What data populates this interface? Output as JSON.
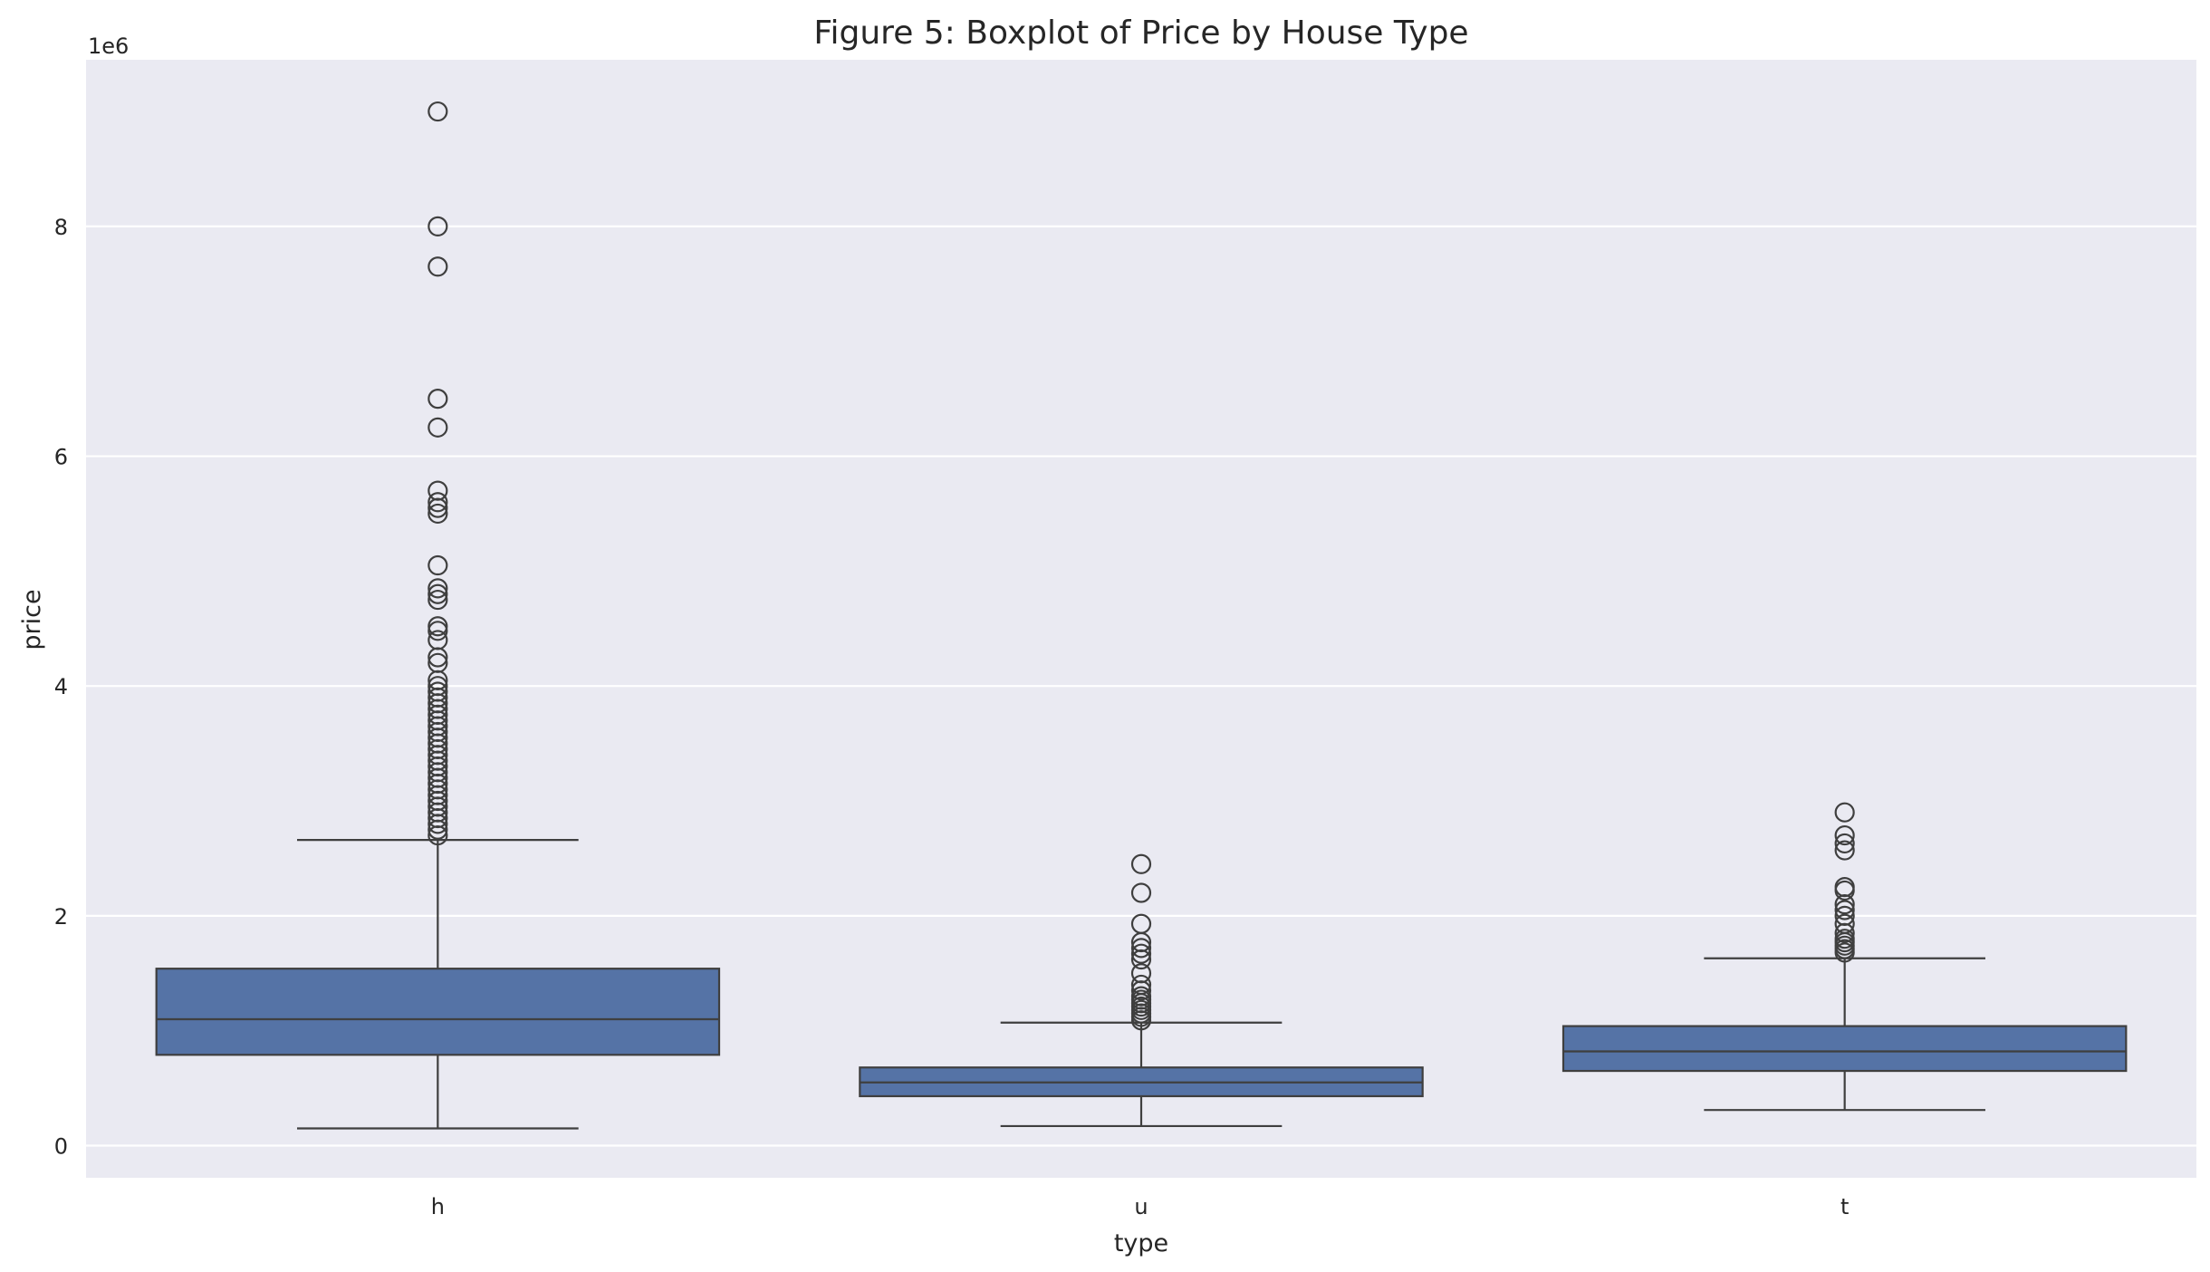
{
  "chart_data": {
    "type": "boxplot",
    "title": "Figure 5: Boxplot of Price by House Type",
    "xlabel": "type",
    "ylabel": "price",
    "y_scale_label": "1e6",
    "y_multiplier": 1000000,
    "ylim": [
      -0.28,
      9.45
    ],
    "y_ticks": [
      0,
      2,
      4,
      6,
      8
    ],
    "y_tick_labels": [
      "0",
      "2",
      "4",
      "6",
      "8"
    ],
    "grid": true,
    "legend": "none",
    "colors": {
      "box": "#5573a6",
      "edge": "#3f3f3f",
      "background": "#eaeaf2"
    },
    "categories": [
      "h",
      "u",
      "t"
    ],
    "series": [
      {
        "category": "h",
        "whisker_low": 0.15,
        "q1": 0.79,
        "median": 1.1,
        "q3": 1.54,
        "whisker_high": 2.66,
        "outliers": [
          9.0,
          8.0,
          7.65,
          6.5,
          6.25,
          5.7,
          5.6,
          5.55,
          5.5,
          5.05,
          4.85,
          4.8,
          4.75,
          4.52,
          4.48,
          4.4,
          4.25,
          4.2,
          4.05,
          4.0,
          3.95,
          3.9,
          3.85,
          3.8,
          3.75,
          3.7,
          3.65,
          3.6,
          3.55,
          3.5,
          3.45,
          3.4,
          3.35,
          3.3,
          3.25,
          3.2,
          3.15,
          3.1,
          3.05,
          3.0,
          2.95,
          2.9,
          2.85,
          2.8,
          2.75,
          2.7
        ]
      },
      {
        "category": "u",
        "whisker_low": 0.17,
        "q1": 0.43,
        "median": 0.55,
        "q3": 0.68,
        "whisker_high": 1.07,
        "outliers": [
          2.45,
          2.2,
          1.93,
          1.77,
          1.72,
          1.67,
          1.62,
          1.5,
          1.4,
          1.35,
          1.3,
          1.27,
          1.24,
          1.21,
          1.18,
          1.15,
          1.12,
          1.09
        ]
      },
      {
        "category": "t",
        "whisker_low": 0.31,
        "q1": 0.65,
        "median": 0.82,
        "q3": 1.04,
        "whisker_high": 1.63,
        "outliers": [
          2.9,
          2.7,
          2.63,
          2.57,
          2.25,
          2.22,
          2.1,
          2.05,
          2.0,
          1.93,
          1.85,
          1.8,
          1.77,
          1.74,
          1.71,
          1.68
        ]
      }
    ]
  }
}
